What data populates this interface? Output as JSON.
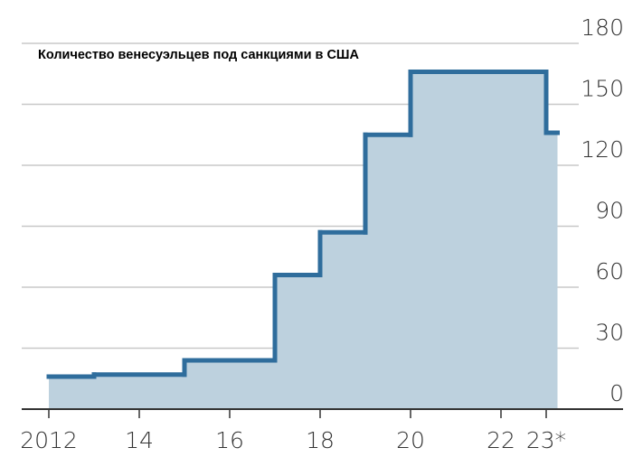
{
  "chart_data": {
    "type": "step",
    "title": "Количество венесуэльцев под санкциями в США",
    "x": [
      2012,
      2013,
      2015,
      2017,
      2018,
      2019,
      2020,
      2023,
      2023.25
    ],
    "values": [
      16,
      17,
      24,
      66,
      87,
      135,
      166,
      136,
      136
    ],
    "color": "#2f6d9c",
    "fill": "#bdd1de",
    "xlim": [
      2011.4,
      2024.7
    ],
    "xticks": [
      2012,
      {
        "value": 2014,
        "label": "14"
      },
      {
        "value": 2016,
        "label": "16"
      },
      {
        "value": 2018,
        "label": "18"
      },
      {
        "value": 2020,
        "label": "20"
      },
      {
        "value": 2022,
        "label": "22"
      },
      {
        "value": 2023,
        "label": "23*"
      }
    ],
    "ylim": [
      0,
      180
    ],
    "yticks": [
      0,
      30,
      60,
      90,
      120,
      150,
      180
    ],
    "grid": true
  }
}
